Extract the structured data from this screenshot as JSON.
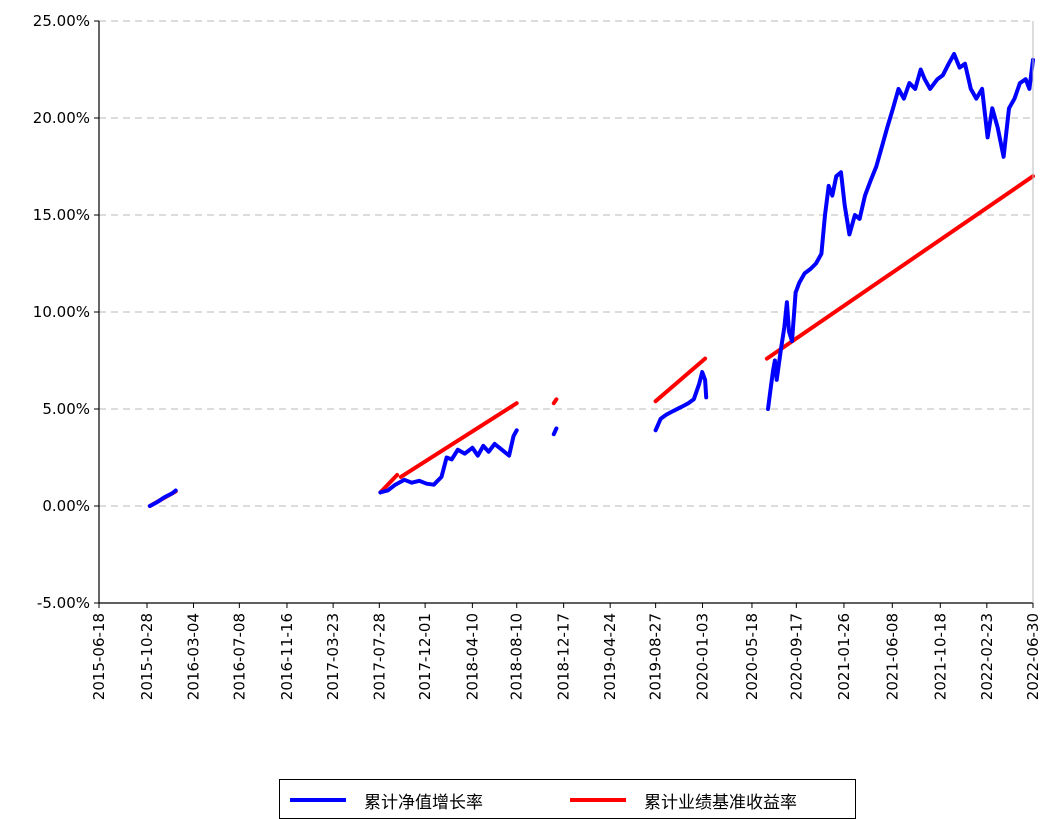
{
  "chart_data": {
    "type": "line",
    "x_ticks": [
      "2015-06-18",
      "2015-10-28",
      "2016-03-04",
      "2016-07-08",
      "2016-11-16",
      "2017-03-23",
      "2017-07-28",
      "2017-12-01",
      "2018-04-10",
      "2018-08-10",
      "2018-12-17",
      "2019-04-24",
      "2019-08-27",
      "2020-01-03",
      "2020-05-18",
      "2020-09-17",
      "2021-01-26",
      "2021-06-08",
      "2021-10-18",
      "2022-02-23",
      "2022-06-30"
    ],
    "y_ticks": [
      "-5.00%",
      "0.00%",
      "5.00%",
      "10.00%",
      "15.00%",
      "20.00%",
      "25.00%"
    ],
    "ylim": [
      -5,
      25
    ],
    "grid": "horizontal-dashed",
    "legend_position": "bottom-center",
    "series": [
      {
        "name": "累计净值增长率",
        "color": "#0000ff",
        "segments": [
          [
            [
              "2015-11-05",
              0.0
            ],
            [
              "2015-11-25",
              0.2
            ],
            [
              "2015-12-15",
              0.45
            ],
            [
              "2016-01-05",
              0.65
            ],
            [
              "2016-01-15",
              0.8
            ]
          ],
          [
            [
              "2017-07-31",
              0.7
            ],
            [
              "2017-08-20",
              0.8
            ],
            [
              "2017-09-10",
              1.1
            ],
            [
              "2017-10-05",
              1.35
            ],
            [
              "2017-10-25",
              1.2
            ],
            [
              "2017-11-15",
              1.3
            ],
            [
              "2017-12-05",
              1.15
            ],
            [
              "2017-12-25",
              1.1
            ],
            [
              "2018-01-15",
              1.5
            ],
            [
              "2018-01-29",
              2.5
            ],
            [
              "2018-02-12",
              2.4
            ],
            [
              "2018-03-01",
              2.9
            ],
            [
              "2018-03-20",
              2.7
            ],
            [
              "2018-04-10",
              3.0
            ],
            [
              "2018-04-25",
              2.6
            ],
            [
              "2018-05-10",
              3.1
            ],
            [
              "2018-05-25",
              2.8
            ],
            [
              "2018-06-10",
              3.2
            ],
            [
              "2018-06-30",
              2.9
            ],
            [
              "2018-07-20",
              2.6
            ],
            [
              "2018-08-01",
              3.6
            ],
            [
              "2018-08-10",
              3.9
            ]
          ],
          [
            [
              "2018-11-20",
              3.7
            ],
            [
              "2018-11-27",
              4.0
            ]
          ],
          [
            [
              "2019-08-27",
              3.9
            ],
            [
              "2019-09-10",
              4.5
            ],
            [
              "2019-09-25",
              4.7
            ],
            [
              "2019-10-15",
              4.9
            ],
            [
              "2019-11-05",
              5.1
            ],
            [
              "2019-11-25",
              5.3
            ],
            [
              "2019-12-10",
              5.5
            ],
            [
              "2019-12-25",
              6.3
            ],
            [
              "2020-01-02",
              6.9
            ],
            [
              "2020-01-10",
              6.5
            ],
            [
              "2020-01-13",
              5.6
            ]
          ],
          [
            [
              "2020-07-01",
              5.0
            ],
            [
              "2020-07-08",
              6.0
            ],
            [
              "2020-07-15",
              7.0
            ],
            [
              "2020-07-20",
              7.5
            ],
            [
              "2020-07-25",
              6.5
            ],
            [
              "2020-08-05",
              8.0
            ],
            [
              "2020-08-15",
              9.2
            ],
            [
              "2020-08-22",
              10.5
            ],
            [
              "2020-08-28",
              9.0
            ],
            [
              "2020-09-05",
              8.5
            ],
            [
              "2020-09-15",
              11.0
            ],
            [
              "2020-09-25",
              11.5
            ],
            [
              "2020-10-10",
              12.0
            ],
            [
              "2020-10-25",
              12.2
            ],
            [
              "2020-11-10",
              12.5
            ],
            [
              "2020-11-25",
              13.0
            ],
            [
              "2020-12-05",
              15.0
            ],
            [
              "2020-12-15",
              16.5
            ],
            [
              "2020-12-25",
              16.0
            ],
            [
              "2021-01-05",
              17.0
            ],
            [
              "2021-01-18",
              17.2
            ],
            [
              "2021-01-28",
              15.5
            ],
            [
              "2021-02-10",
              14.0
            ],
            [
              "2021-02-25",
              15.0
            ],
            [
              "2021-03-10",
              14.8
            ],
            [
              "2021-03-25",
              16.0
            ],
            [
              "2021-04-10",
              16.8
            ],
            [
              "2021-04-25",
              17.5
            ],
            [
              "2021-05-10",
              18.5
            ],
            [
              "2021-05-25",
              19.5
            ],
            [
              "2021-06-10",
              20.5
            ],
            [
              "2021-06-25",
              21.5
            ],
            [
              "2021-07-10",
              21.0
            ],
            [
              "2021-07-25",
              21.8
            ],
            [
              "2021-08-10",
              21.5
            ],
            [
              "2021-08-25",
              22.5
            ],
            [
              "2021-09-05",
              22.0
            ],
            [
              "2021-09-20",
              21.5
            ],
            [
              "2021-10-10",
              22.0
            ],
            [
              "2021-10-25",
              22.2
            ],
            [
              "2021-11-10",
              22.8
            ],
            [
              "2021-11-25",
              23.3
            ],
            [
              "2021-12-10",
              22.6
            ],
            [
              "2021-12-25",
              22.8
            ],
            [
              "2022-01-10",
              21.5
            ],
            [
              "2022-01-25",
              21.0
            ],
            [
              "2022-02-10",
              21.5
            ],
            [
              "2022-02-25",
              19.0
            ],
            [
              "2022-03-10",
              20.5
            ],
            [
              "2022-03-25",
              19.5
            ],
            [
              "2022-04-10",
              18.0
            ],
            [
              "2022-04-25",
              20.5
            ],
            [
              "2022-05-10",
              21.0
            ],
            [
              "2022-05-25",
              21.8
            ],
            [
              "2022-06-10",
              22.0
            ],
            [
              "2022-06-20",
              21.5
            ],
            [
              "2022-06-30",
              23.0
            ]
          ]
        ]
      },
      {
        "name": "累计业绩基准收益率",
        "color": "#ff0000",
        "segments": [
          [
            [
              "2015-11-05",
              0.0
            ],
            [
              "2016-01-15",
              0.75
            ]
          ],
          [
            [
              "2017-07-31",
              0.7
            ],
            [
              "2017-09-15",
              1.6
            ]
          ],
          [
            [
              "2017-09-25",
              1.5
            ],
            [
              "2018-08-10",
              5.3
            ]
          ],
          [
            [
              "2018-11-20",
              5.3
            ],
            [
              "2018-11-27",
              5.5
            ]
          ],
          [
            [
              "2019-08-27",
              5.4
            ],
            [
              "2020-01-10",
              7.6
            ]
          ],
          [
            [
              "2020-06-28",
              7.6
            ],
            [
              "2022-06-30",
              17.0
            ]
          ]
        ]
      }
    ]
  }
}
